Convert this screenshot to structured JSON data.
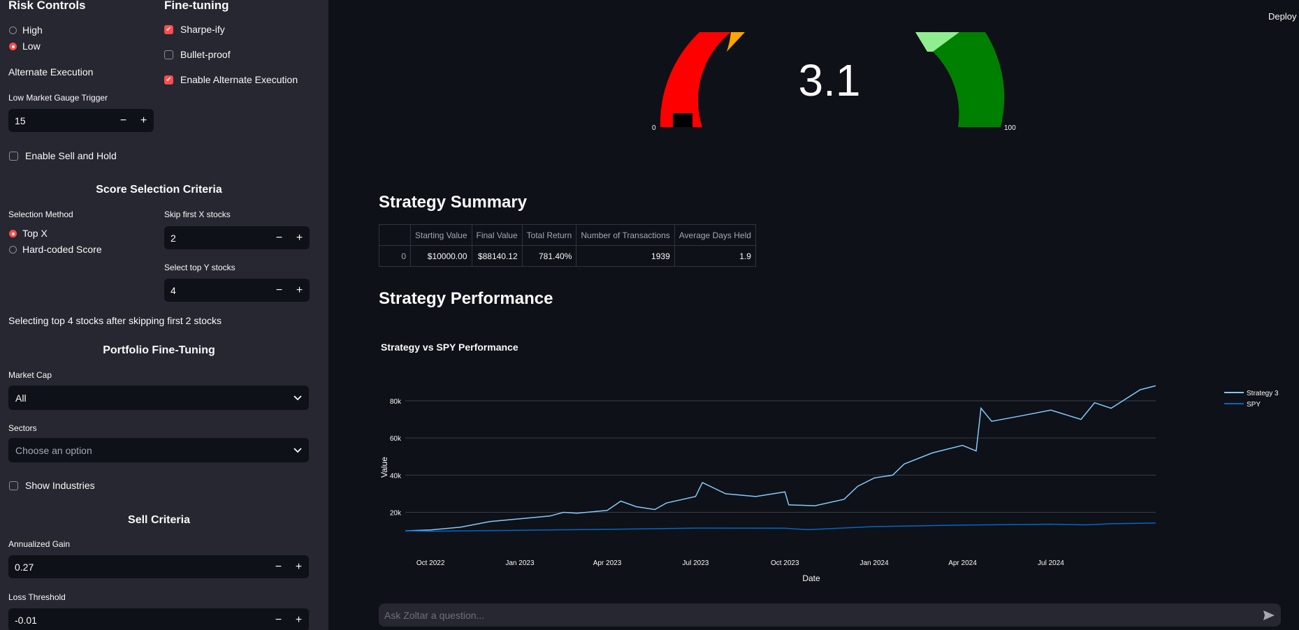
{
  "header": {
    "deploy_label": "Deploy"
  },
  "sidebar": {
    "risk_controls": {
      "title": "Risk Controls",
      "options": [
        "High",
        "Low"
      ],
      "selected": "Low"
    },
    "fine_tuning": {
      "title": "Fine-tuning",
      "checks": [
        {
          "label": "Sharpe-ify",
          "checked": true
        },
        {
          "label": "Bullet-proof",
          "checked": false
        },
        {
          "label": "Enable Alternate Execution",
          "checked": true
        }
      ]
    },
    "alternate_execution": "Alternate Execution",
    "low_gauge_trigger": {
      "label": "Low Market Gauge Trigger",
      "value": "15"
    },
    "sell_and_hold": {
      "label": "Enable Sell and Hold",
      "checked": false
    },
    "score_selection": {
      "title": "Score Selection Criteria",
      "method_label": "Selection Method",
      "methods": [
        "Top X",
        "Hard-coded Score"
      ],
      "selected_method": "Top X",
      "skip_label": "Skip first X stocks",
      "skip_value": "2",
      "top_label": "Select top Y stocks",
      "top_value": "4",
      "summary": "Selecting top 4 stocks after skipping first 2 stocks"
    },
    "portfolio": {
      "title": "Portfolio Fine-Tuning",
      "market_cap_label": "Market Cap",
      "market_cap_value": "All",
      "sectors_label": "Sectors",
      "sectors_placeholder": "Choose an option",
      "show_industries": {
        "label": "Show Industries",
        "checked": false
      }
    },
    "sell_criteria": {
      "title": "Sell Criteria",
      "annualized_gain_label": "Annualized Gain",
      "annualized_gain_value": "0.27",
      "loss_threshold_label": "Loss Threshold",
      "loss_threshold_value": "-0.01"
    }
  },
  "gauge": {
    "value": "3.1",
    "min_label": "0",
    "max_label": "100",
    "colors": {
      "red": "#ff0000",
      "orange": "#ffa500",
      "lightgreen": "#90ee90",
      "green": "#008000",
      "needle": "#000000"
    }
  },
  "summary": {
    "title": "Strategy Summary",
    "columns": [
      "",
      "Starting Value",
      "Final Value",
      "Total Return",
      "Number of Transactions",
      "Average Days Held"
    ],
    "rows": [
      [
        "0",
        "$10000.00",
        "$88140.12",
        "781.40%",
        "1939",
        "1.9"
      ]
    ]
  },
  "performance": {
    "title": "Strategy Performance"
  },
  "chart_data": {
    "type": "line",
    "title": "Strategy vs SPY Performance",
    "xlabel": "Date",
    "ylabel": "Value",
    "x_ticks": [
      "Oct 2022",
      "Jan 2023",
      "Apr 2023",
      "Jul 2023",
      "Oct 2023",
      "Jan 2024",
      "Apr 2024",
      "Jul 2024"
    ],
    "y_ticks": [
      "20k",
      "40k",
      "60k",
      "80k"
    ],
    "y_tick_values": [
      20000,
      40000,
      60000,
      80000
    ],
    "ylim": [
      4000,
      92000
    ],
    "x_range": [
      "2022-09-05",
      "2024-10-17"
    ],
    "grid": true,
    "legend_position": "top-right",
    "series": [
      {
        "name": "Strategy 3",
        "color": "#83c9ff",
        "x": [
          "2022-09-05",
          "2022-10-01",
          "2022-11-01",
          "2022-12-01",
          "2023-01-01",
          "2023-02-01",
          "2023-02-15",
          "2023-03-01",
          "2023-04-01",
          "2023-04-15",
          "2023-05-01",
          "2023-05-20",
          "2023-06-01",
          "2023-07-01",
          "2023-07-08",
          "2023-08-01",
          "2023-09-01",
          "2023-10-01",
          "2023-10-05",
          "2023-11-01",
          "2023-12-01",
          "2023-12-15",
          "2024-01-01",
          "2024-01-20",
          "2024-02-01",
          "2024-03-01",
          "2024-04-01",
          "2024-04-15",
          "2024-04-20",
          "2024-05-01",
          "2024-06-01",
          "2024-07-01",
          "2024-08-01",
          "2024-08-15",
          "2024-09-01",
          "2024-10-01",
          "2024-10-17"
        ],
        "values": [
          10000,
          10500,
          12000,
          15000,
          16500,
          18000,
          20000,
          19500,
          21000,
          26000,
          23000,
          21500,
          25000,
          28500,
          36000,
          30000,
          28500,
          31000,
          24000,
          23500,
          27000,
          34000,
          38500,
          40000,
          46000,
          52000,
          56000,
          53000,
          76000,
          69000,
          72000,
          75000,
          70000,
          79000,
          76000,
          86000,
          88140
        ]
      },
      {
        "name": "SPY",
        "color": "#0068c9",
        "x": [
          "2022-09-05",
          "2022-10-01",
          "2023-01-01",
          "2023-04-01",
          "2023-07-01",
          "2023-10-01",
          "2023-10-25",
          "2024-01-01",
          "2024-04-01",
          "2024-07-01",
          "2024-08-05",
          "2024-09-01",
          "2024-10-17"
        ],
        "values": [
          10000,
          9800,
          10300,
          10800,
          11500,
          11400,
          10600,
          12300,
          13100,
          13600,
          13200,
          13800,
          14200
        ]
      }
    ]
  }
}
